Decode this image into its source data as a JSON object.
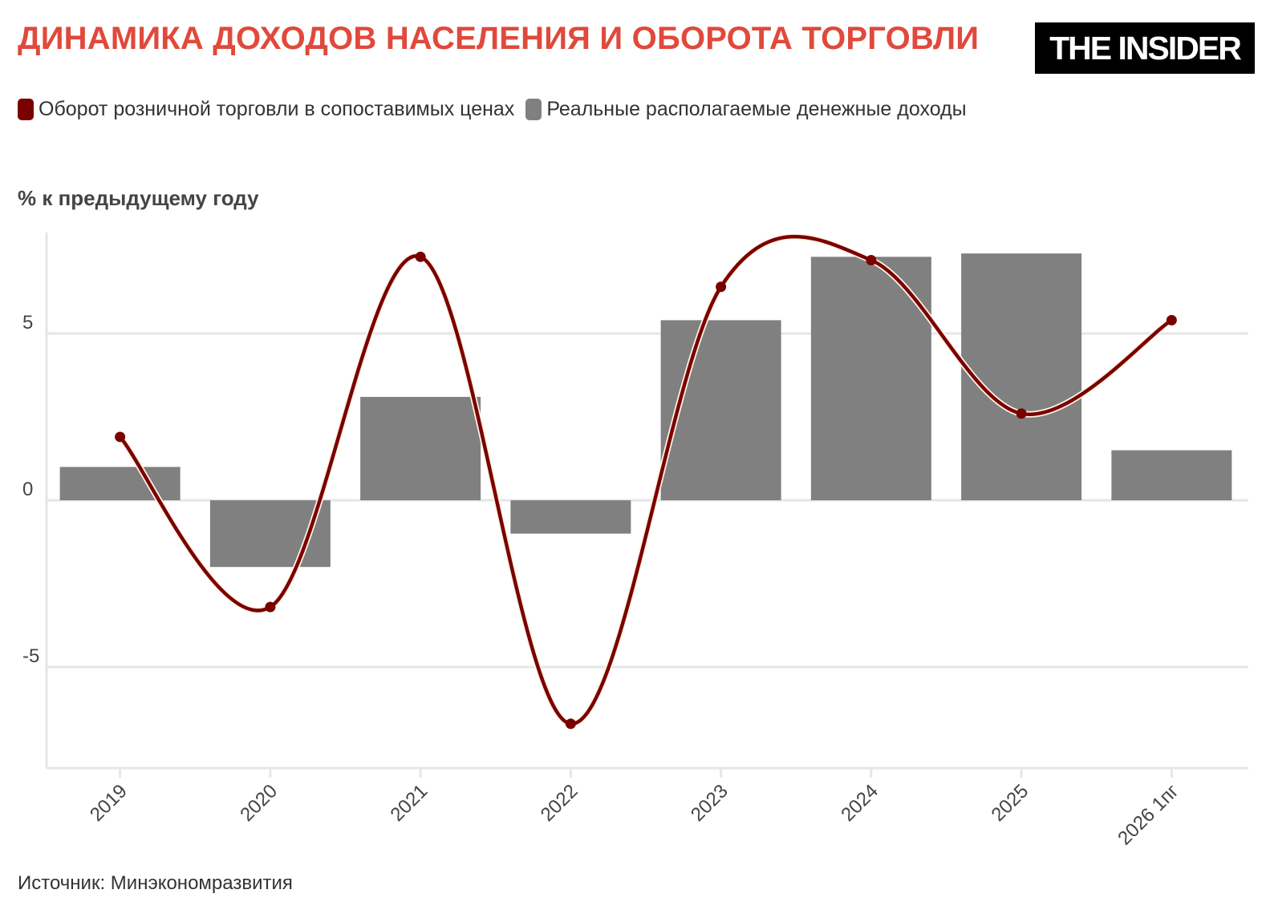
{
  "header": {
    "title": "ДИНАМИКА ДОХОДОВ НАСЕЛЕНИЯ И ОБОРОТА ТОРГОВЛИ",
    "logo_text": "THE INSIDER"
  },
  "legend": {
    "items": [
      {
        "label": "Оборот розничной торговли в сопоставимых ценах",
        "color": "#7a0000"
      },
      {
        "label": "Реальные располагаемые денежные доходы",
        "color": "#808080"
      }
    ]
  },
  "footer": {
    "source": "Источник: Минэкономразвития"
  },
  "chart_data": {
    "type": "bar",
    "ylabel": "% к предыдущему году",
    "categories": [
      "2019",
      "2020",
      "2021",
      "2022",
      "2023",
      "2024",
      "2025",
      "2026 1пг"
    ],
    "ylim": [
      -8,
      8
    ],
    "yticks": [
      -5,
      0,
      5
    ],
    "grid": true,
    "legend_position": "top-left",
    "series": [
      {
        "name": "Реальные располагаемые денежные доходы",
        "type": "bar",
        "color": "#808080",
        "values": [
          1.0,
          -2.0,
          3.1,
          -1.0,
          5.4,
          7.3,
          7.4,
          1.5
        ]
      },
      {
        "name": "Оборот розничной торговли в сопоставимых ценах",
        "type": "line",
        "color": "#7a0000",
        "values": [
          1.9,
          -3.2,
          7.3,
          -6.7,
          6.4,
          7.2,
          2.6,
          5.4
        ]
      }
    ]
  }
}
